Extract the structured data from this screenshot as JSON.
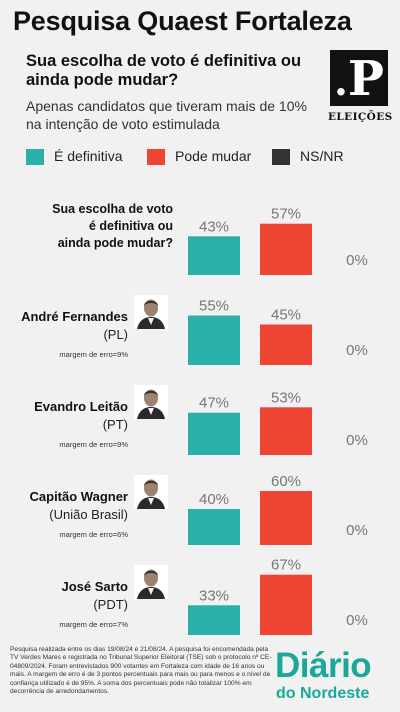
{
  "header": {
    "title": "Pesquisa Quaest Fortaleza",
    "subtitle": "Sua escolha de voto é definitiva ou ainda pode mudar?",
    "note": "Apenas candidatos que tiveram mais de 10% na intenção de voto estimulada"
  },
  "logo": {
    "letter": "P",
    "label": "ELEIÇÕES"
  },
  "colors": {
    "definitiva": "#2ab0a8",
    "pode_mudar": "#ee4433",
    "nsnr": "#333333"
  },
  "chart_data": {
    "type": "bar",
    "legend": [
      {
        "name": "É definitiva",
        "color": "#2ab0a8"
      },
      {
        "name": "Pode mudar",
        "color": "#ee4433"
      },
      {
        "name": "NS/NR",
        "color": "#333333"
      }
    ],
    "groups": [
      {
        "name": "Sua escolha de voto é definitiva ou ainda pode mudar?",
        "party": "",
        "margin": "",
        "photo": false,
        "values": [
          43,
          57,
          0
        ]
      },
      {
        "name": "André Fernandes",
        "party": "(PL)",
        "margin": "margem de erro=9%",
        "photo": true,
        "values": [
          55,
          45,
          0
        ]
      },
      {
        "name": "Evandro Leitão",
        "party": "(PT)",
        "margin": "margem de erro=9%",
        "photo": true,
        "values": [
          47,
          53,
          0
        ]
      },
      {
        "name": "Capitão Wagner",
        "party": "(União Brasil)",
        "margin": "margem de erro=6%",
        "photo": true,
        "values": [
          40,
          60,
          0
        ]
      },
      {
        "name": "José Sarto",
        "party": "(PDT)",
        "margin": "margem de erro=7%",
        "photo": true,
        "values": [
          33,
          67,
          0
        ]
      }
    ],
    "value_suffix": "%",
    "ylim": [
      0,
      100
    ]
  },
  "footer": {
    "text": "Pesquisa realizada entre os dias 19/08/24 e 21/08/24. A pesquisa foi encomendada pela TV Verdes Mares e registrada no Tribunal Superior Eleitoral (TSE) sob o protocolo nº CE-04809/2024. Foram entrevistados 900 votantes em Fortaleza com idade de 16 anos ou mais. A margem de erro é de 3 pontos percentuais para mais ou para menos e o nível de confiança utilizado é de 95%. A soma dos percentuais pode não totalizar 100% em decorrência de arredondamentos."
  },
  "brand": {
    "line1": "Diário",
    "line2": "do Nordeste"
  }
}
